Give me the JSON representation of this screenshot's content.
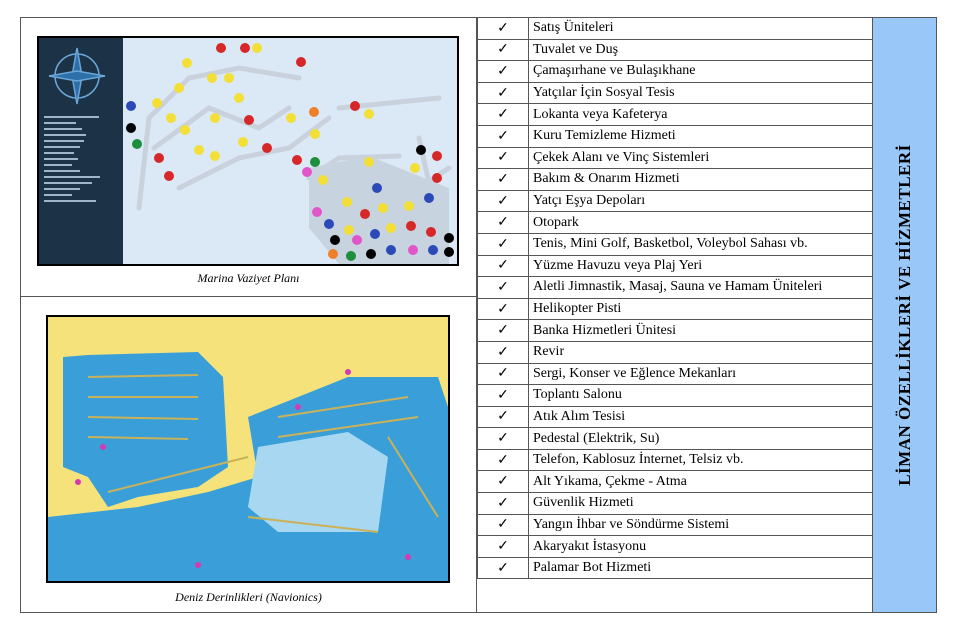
{
  "captions": {
    "marina_plan": "Marina Vaziyet Planı",
    "depth_map": "Deniz Derinlikleri (Navionics)"
  },
  "side_title": "LİMAN ÖZELLİKLERİ VE HİZMETLERİ",
  "check_symbol": "✓",
  "features": [
    "Satış Üniteleri",
    "Tuvalet ve Duş",
    "Çamaşırhane ve Bulaşıkhane",
    "Yatçılar İçin Sosyal Tesis",
    "Lokanta veya Kafeterya",
    "Kuru Temizleme Hizmeti",
    "Çekek Alanı ve Vinç Sistemleri",
    "Bakım & Onarım Hizmeti",
    "Yatçı Eşya Depoları",
    "Otopark",
    "Tenis, Mini Golf, Basketbol, Voleybol Sahası vb.",
    "Yüzme Havuzu veya Plaj Yeri",
    "Aletli Jimnastik, Masaj, Sauna ve Hamam Üniteleri",
    "Helikopter Pisti",
    "Banka Hizmetleri Ünitesi",
    "Revir",
    "Sergi, Konser ve Eğlence Mekanları",
    "Toplantı Salonu",
    "Atık Alım Tesisi",
    "Pedestal (Elektrik, Su)",
    "Telefon, Kablosuz İnternet, Telsiz vb.",
    "Alt Yıkama, Çekme - Atma",
    "Güvenlik Hizmeti",
    "Yangın İhbar ve Söndürme Sistemi",
    "Akaryakıt İstasyonu",
    "Palamar Bot Hizmeti"
  ],
  "colors": {
    "side_panel": "#99c7f7",
    "legend_panel": "#1c3347",
    "water": "#3a9fd8",
    "land": "#f6e27a"
  }
}
